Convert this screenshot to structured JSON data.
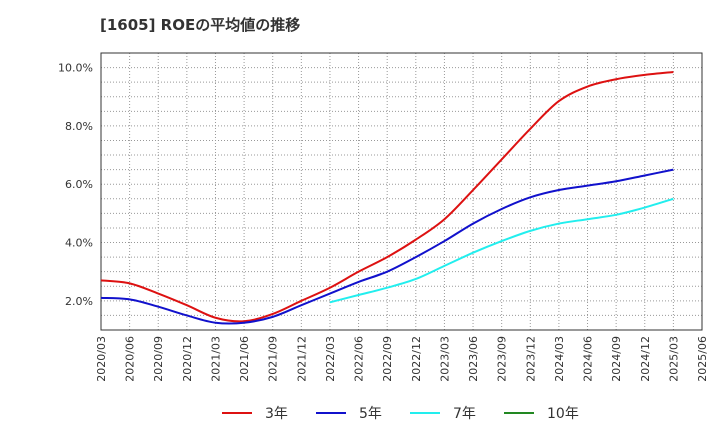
{
  "chart_data": {
    "type": "line",
    "title": "[1605]  ROEの平均値の推移",
    "xlabel": "",
    "ylabel": "",
    "ylim": [
      1.0,
      10.5
    ],
    "y_ticks": [
      2.0,
      4.0,
      6.0,
      8.0,
      10.0
    ],
    "y_tick_labels": [
      "2.0%",
      "4.0%",
      "6.0%",
      "8.0%",
      "10.0%"
    ],
    "x_ticks": [
      "2020/03",
      "2020/06",
      "2020/09",
      "2020/12",
      "2021/03",
      "2021/06",
      "2021/09",
      "2021/12",
      "2022/03",
      "2022/06",
      "2022/09",
      "2022/12",
      "2023/03",
      "2023/06",
      "2023/09",
      "2023/12",
      "2024/03",
      "2024/06",
      "2024/09",
      "2024/12",
      "2025/03",
      "2025/06"
    ],
    "grid": true,
    "legend_position": "bottom",
    "series": [
      {
        "name": "3年",
        "color": "#dd1111",
        "x": [
          "2020/03",
          "2020/06",
          "2020/09",
          "2020/12",
          "2021/03",
          "2021/06",
          "2021/09",
          "2021/12",
          "2022/03",
          "2022/06",
          "2022/09",
          "2022/12",
          "2023/03",
          "2023/06",
          "2023/09",
          "2023/12",
          "2024/03",
          "2024/06",
          "2024/09",
          "2024/12",
          "2025/03"
        ],
        "values": [
          2.7,
          2.6,
          2.25,
          1.85,
          1.42,
          1.3,
          1.55,
          2.0,
          2.45,
          3.0,
          3.5,
          4.1,
          4.8,
          5.8,
          6.85,
          7.9,
          8.85,
          9.35,
          9.6,
          9.75,
          9.85
        ]
      },
      {
        "name": "5年",
        "color": "#1111cc",
        "x": [
          "2020/03",
          "2020/06",
          "2020/09",
          "2020/12",
          "2021/03",
          "2021/06",
          "2021/09",
          "2021/12",
          "2022/03",
          "2022/06",
          "2022/09",
          "2022/12",
          "2023/03",
          "2023/06",
          "2023/09",
          "2023/12",
          "2024/03",
          "2024/06",
          "2024/09",
          "2024/12",
          "2025/03"
        ],
        "values": [
          2.1,
          2.05,
          1.8,
          1.5,
          1.25,
          1.25,
          1.45,
          1.85,
          2.25,
          2.65,
          3.0,
          3.5,
          4.05,
          4.65,
          5.15,
          5.55,
          5.8,
          5.95,
          6.1,
          6.3,
          6.5
        ]
      },
      {
        "name": "7年",
        "color": "#22eeee",
        "x": [
          "2022/03",
          "2022/06",
          "2022/09",
          "2022/12",
          "2023/03",
          "2023/06",
          "2023/09",
          "2023/12",
          "2024/03",
          "2024/06",
          "2024/09",
          "2024/12",
          "2025/03"
        ],
        "values": [
          1.95,
          2.2,
          2.45,
          2.75,
          3.2,
          3.65,
          4.05,
          4.4,
          4.65,
          4.8,
          4.95,
          5.2,
          5.5
        ]
      },
      {
        "name": "10年",
        "color": "#228822",
        "x": [],
        "values": []
      }
    ]
  }
}
